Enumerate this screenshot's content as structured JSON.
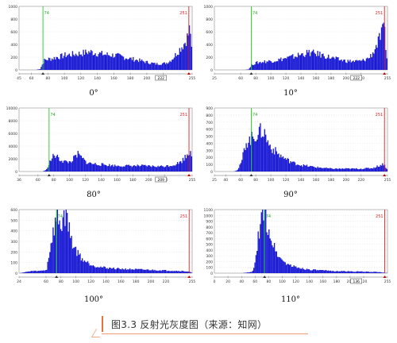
{
  "figure": {
    "caption": "图3.3  反射光灰度图（来源：知网）",
    "accent_color": "#e8703a"
  },
  "chart_data": [
    {
      "type": "area",
      "angle_label": "0°",
      "xlim": [
        45,
        255
      ],
      "ylim": [
        0,
        1000
      ],
      "x_ticks": [
        "45",
        "60",
        "80",
        "100",
        "120",
        "140",
        "160",
        "180",
        "200",
        "220",
        "255"
      ],
      "y_ticks": [
        "0",
        "200",
        "400",
        "600",
        "800",
        "1000"
      ],
      "axis_box_label": "222",
      "green_marker": 74,
      "red_marker": 251,
      "fill_color": "#1a1ad4",
      "x": [
        45,
        60,
        65,
        70,
        75,
        80,
        85,
        90,
        95,
        100,
        110,
        120,
        130,
        140,
        150,
        160,
        170,
        180,
        190,
        200,
        210,
        220,
        225,
        230,
        235,
        240,
        245,
        250,
        252,
        255
      ],
      "y": [
        0,
        0,
        0,
        15,
        150,
        170,
        180,
        200,
        210,
        230,
        245,
        260,
        285,
        260,
        240,
        230,
        205,
        175,
        150,
        120,
        95,
        100,
        120,
        170,
        250,
        340,
        420,
        560,
        700,
        0
      ]
    },
    {
      "type": "area",
      "angle_label": "10°",
      "xlim": [
        25,
        255
      ],
      "ylim": [
        0,
        1000
      ],
      "x_ticks": [
        "25",
        "60",
        "80",
        "100",
        "120",
        "140",
        "160",
        "180",
        "200",
        "220",
        "255"
      ],
      "y_ticks": [
        "0",
        "200",
        "400",
        "600",
        "800",
        "1000"
      ],
      "axis_box_label": "222",
      "green_marker": 74,
      "red_marker": 251,
      "fill_color": "#1a1ad4",
      "x": [
        25,
        60,
        65,
        70,
        75,
        80,
        85,
        90,
        100,
        110,
        120,
        130,
        140,
        150,
        160,
        170,
        180,
        190,
        200,
        210,
        220,
        230,
        235,
        240,
        245,
        250,
        255
      ],
      "y": [
        0,
        0,
        0,
        10,
        90,
        110,
        120,
        130,
        140,
        160,
        185,
        210,
        245,
        270,
        255,
        225,
        190,
        160,
        140,
        135,
        140,
        190,
        270,
        390,
        520,
        650,
        0
      ]
    },
    {
      "type": "area",
      "angle_label": "80°",
      "xlim": [
        36,
        255
      ],
      "ylim": [
        0,
        10000
      ],
      "x_ticks": [
        "36",
        "60",
        "80",
        "100",
        "120",
        "140",
        "160",
        "180",
        "200",
        "220",
        "255"
      ],
      "y_ticks": [
        "0",
        "2000",
        "4000",
        "6000",
        "8000",
        "10000"
      ],
      "axis_box_label": "209",
      "green_marker": 74,
      "red_marker": 251,
      "fill_color": "#1a1ad4",
      "x": [
        36,
        60,
        65,
        70,
        72,
        75,
        80,
        85,
        90,
        95,
        100,
        105,
        110,
        115,
        120,
        125,
        130,
        140,
        150,
        160,
        170,
        180,
        190,
        200,
        210,
        220,
        230,
        240,
        245,
        250,
        253,
        255
      ],
      "y": [
        0,
        0,
        0,
        250,
        900,
        1700,
        2600,
        2100,
        1700,
        1500,
        1500,
        2100,
        2700,
        2100,
        1500,
        1300,
        1200,
        1100,
        1000,
        900,
        900,
        900,
        900,
        850,
        800,
        850,
        1000,
        1500,
        2200,
        3000,
        3700,
        0
      ]
    },
    {
      "type": "area",
      "angle_label": "90°",
      "xlim": [
        25,
        255
      ],
      "ylim": [
        0,
        900
      ],
      "x_ticks": [
        "25",
        "40",
        "60",
        "80",
        "100",
        "120",
        "140",
        "160",
        "180",
        "200",
        "220",
        "255"
      ],
      "y_ticks": [
        "0",
        "100",
        "200",
        "300",
        "400",
        "500",
        "600",
        "700",
        "800",
        "900"
      ],
      "axis_box_label": "",
      "green_marker": 74,
      "red_marker": 251,
      "fill_color": "#1a1ad4",
      "x": [
        25,
        40,
        50,
        55,
        60,
        63,
        66,
        70,
        75,
        80,
        85,
        88,
        92,
        95,
        100,
        110,
        120,
        130,
        140,
        160,
        180,
        200,
        220,
        235,
        240,
        245,
        250,
        255
      ],
      "y": [
        0,
        0,
        0,
        20,
        120,
        260,
        420,
        430,
        480,
        520,
        560,
        580,
        530,
        420,
        340,
        240,
        170,
        120,
        90,
        60,
        40,
        40,
        40,
        50,
        70,
        90,
        110,
        0
      ]
    },
    {
      "type": "area",
      "angle_label": "100°",
      "xlim": [
        24,
        255
      ],
      "ylim": [
        0,
        600
      ],
      "x_ticks": [
        "24",
        "60",
        "80",
        "100",
        "120",
        "140",
        "160",
        "180",
        "200",
        "220",
        "255"
      ],
      "y_ticks": [
        "0",
        "100",
        "200",
        "300",
        "400",
        "500",
        "600"
      ],
      "axis_box_label": "",
      "green_marker": 74,
      "red_marker": 251,
      "fill_color": "#1a1ad4",
      "x": [
        24,
        40,
        50,
        60,
        65,
        70,
        72,
        75,
        78,
        80,
        82,
        85,
        88,
        90,
        93,
        96,
        100,
        105,
        110,
        120,
        130,
        140,
        160,
        180,
        200,
        220,
        240,
        250,
        255
      ],
      "y": [
        0,
        20,
        20,
        30,
        250,
        420,
        480,
        520,
        470,
        430,
        520,
        560,
        540,
        420,
        320,
        260,
        210,
        160,
        120,
        80,
        60,
        50,
        40,
        35,
        30,
        25,
        20,
        15,
        0
      ]
    },
    {
      "type": "area",
      "angle_label": "110°",
      "xlim": [
        0,
        255
      ],
      "ylim": [
        0,
        1100
      ],
      "x_ticks": [
        "0",
        "20",
        "40",
        "60",
        "80",
        "100",
        "120",
        "140",
        "160",
        "180",
        "200",
        "220",
        "255"
      ],
      "y_ticks": [
        "0",
        "100",
        "200",
        "300",
        "400",
        "500",
        "600",
        "700",
        "800",
        "900",
        "1000",
        "1100"
      ],
      "axis_box_label": "136",
      "green_marker": 74,
      "red_marker": 251,
      "fill_color": "#1a1ad4",
      "x": [
        0,
        40,
        55,
        60,
        63,
        66,
        70,
        73,
        76,
        80,
        85,
        90,
        95,
        100,
        110,
        120,
        130,
        140,
        160,
        180,
        200,
        220,
        240,
        255
      ],
      "y": [
        0,
        0,
        20,
        200,
        520,
        820,
        980,
        1040,
        900,
        720,
        520,
        380,
        280,
        210,
        140,
        100,
        80,
        60,
        45,
        35,
        30,
        25,
        20,
        0
      ]
    }
  ]
}
